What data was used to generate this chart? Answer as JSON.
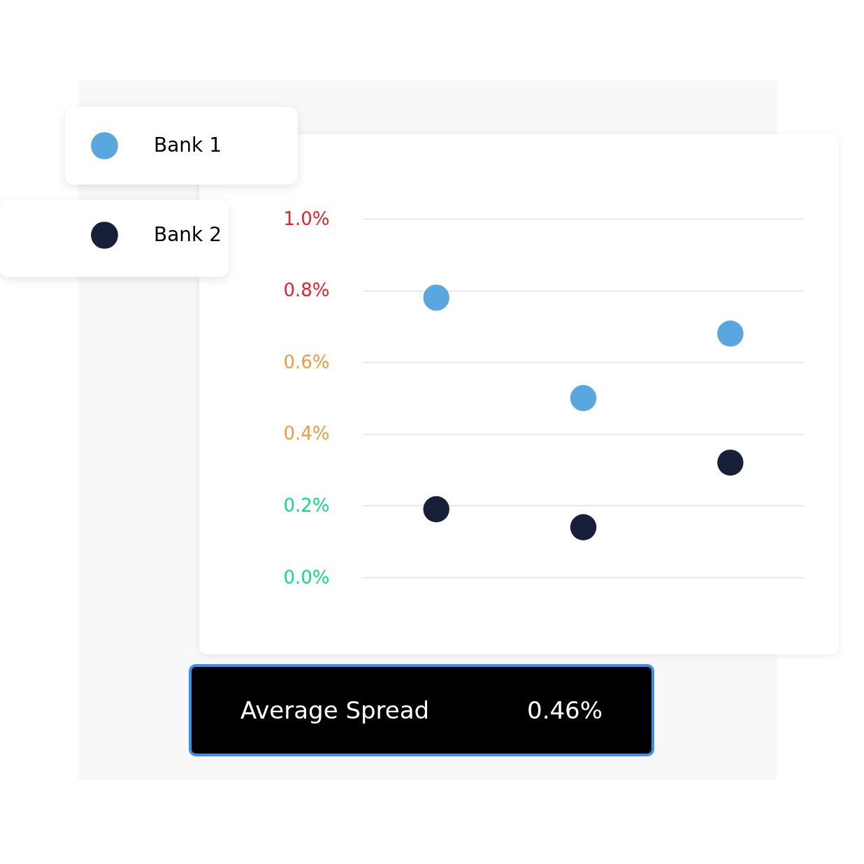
{
  "chart_data": {
    "type": "scatter",
    "categories": [
      null,
      null,
      null
    ],
    "series": [
      {
        "name": "Bank 1",
        "color": "#5aa6e0",
        "values": [
          0.78,
          0.5,
          0.68
        ]
      },
      {
        "name": "Bank 2",
        "color": "#172038",
        "values": [
          0.19,
          0.14,
          0.32
        ]
      }
    ],
    "ylim": [
      0,
      1.0
    ],
    "yticks": [
      {
        "value": 0,
        "label": "0.0%"
      },
      {
        "value": 0.2,
        "label": "0.2%"
      },
      {
        "value": 0.4,
        "label": "0.4%"
      },
      {
        "value": 0.6,
        "label": "0.6%"
      },
      {
        "value": 0.8,
        "label": "0.8%"
      },
      {
        "value": 1.0,
        "label": "1.0%"
      }
    ],
    "grid": "y",
    "legend": "top left",
    "marker": "circle",
    "tick_labels": "y",
    "annotations": [
      "Average Spread",
      "0.46%"
    ]
  }
}
